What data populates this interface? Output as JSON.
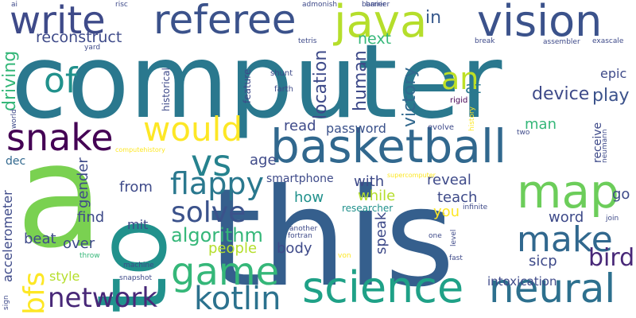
{
  "words": [
    "computer",
    "this",
    "to",
    "a",
    "basketball",
    "science",
    "neural",
    "map",
    "vision",
    "referee",
    "write",
    "java",
    "snake",
    "game",
    "make",
    "network",
    "kotlin",
    "would",
    "vs",
    "bfs",
    "flappy",
    "solve",
    "of",
    "an",
    "bird",
    "algorithm",
    "reconstruct",
    "next",
    "in",
    "driving",
    "location",
    "human",
    "victory",
    "device",
    "play",
    "at",
    "epic",
    "man",
    "read",
    "password",
    "barrier",
    "accelerometer",
    "gender",
    "dec",
    "age",
    "from",
    "with",
    "smartphone",
    "how",
    "reveal",
    "teach",
    "while",
    "find",
    "mit",
    "word",
    "go",
    "you",
    "beat",
    "over",
    "people",
    "body",
    "speak",
    "researcher",
    "style",
    "sicp",
    "intoxication",
    "receive",
    "feature",
    "historical",
    "shunt",
    "farth",
    "rigid",
    "evolve",
    "two",
    "history",
    "neumann",
    "supercomputer",
    "computehistory",
    "infinite",
    "join",
    "throw",
    "machine",
    "another",
    "fortran",
    "von",
    "one",
    "level",
    "fast",
    "snapshot",
    "sign",
    "world",
    "ai",
    "risc",
    "admonish",
    "barrier",
    "tetris",
    "yard",
    "break",
    "assembler",
    "exascale"
  ]
}
